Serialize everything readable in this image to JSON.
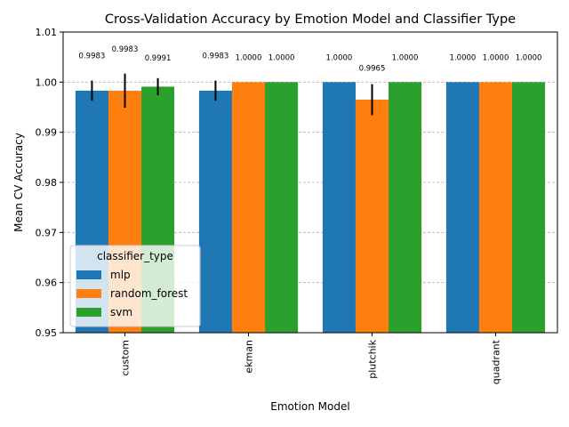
{
  "chart_data": {
    "type": "bar",
    "title": "Cross-Validation Accuracy by Emotion Model and Classifier Type",
    "xlabel": "Emotion Model",
    "ylabel": "Mean CV Accuracy",
    "categories": [
      "custom",
      "ekman",
      "plutchik",
      "quadrant"
    ],
    "ylim": [
      0.95,
      1.01
    ],
    "yticks": [
      "0.95",
      "0.96",
      "0.97",
      "0.98",
      "0.99",
      "1.00",
      "1.01"
    ],
    "grid": "y-dashed",
    "legend": {
      "title": "classifier_type",
      "placement": "lower-left"
    },
    "series": [
      {
        "name": "mlp",
        "color": "#1f77b4",
        "values": [
          0.9983,
          0.9983,
          1.0,
          1.0
        ],
        "errors": [
          0.002,
          0.002,
          0.0,
          0.0
        ],
        "labels": [
          "0.9983",
          "0.9983",
          "1.0000",
          "1.0000"
        ]
      },
      {
        "name": "random_forest",
        "color": "#ff7f0e",
        "values": [
          0.9983,
          1.0,
          0.9965,
          1.0
        ],
        "errors": [
          0.0034,
          0.0,
          0.0031,
          0.0
        ],
        "labels": [
          "0.9983",
          "1.0000",
          "0.9965",
          "1.0000"
        ]
      },
      {
        "name": "svm",
        "color": "#2ca02c",
        "values": [
          0.9991,
          1.0,
          1.0,
          1.0
        ],
        "errors": [
          0.0017,
          0.0,
          0.0,
          0.0
        ],
        "labels": [
          "0.9991",
          "1.0000",
          "1.0000",
          "1.0000"
        ]
      }
    ]
  }
}
